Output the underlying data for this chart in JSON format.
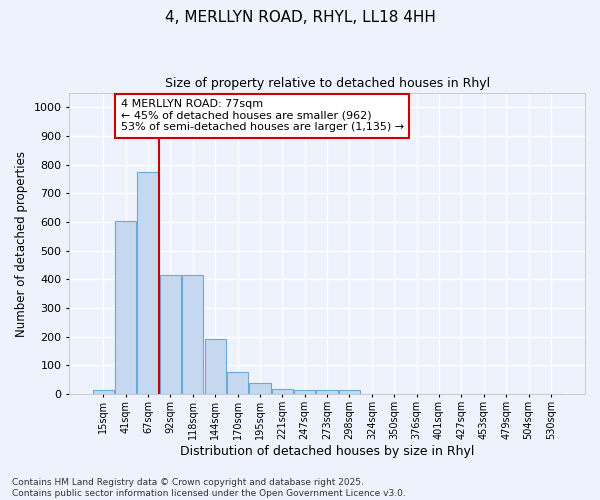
{
  "title_line1": "4, MERLLYN ROAD, RHYL, LL18 4HH",
  "title_line2": "Size of property relative to detached houses in Rhyl",
  "xlabel": "Distribution of detached houses by size in Rhyl",
  "ylabel": "Number of detached properties",
  "categories": [
    "15sqm",
    "41sqm",
    "67sqm",
    "92sqm",
    "118sqm",
    "144sqm",
    "170sqm",
    "195sqm",
    "221sqm",
    "247sqm",
    "273sqm",
    "298sqm",
    "324sqm",
    "350sqm",
    "376sqm",
    "401sqm",
    "427sqm",
    "453sqm",
    "479sqm",
    "504sqm",
    "530sqm"
  ],
  "values": [
    15,
    605,
    775,
    415,
    415,
    193,
    78,
    40,
    18,
    15,
    13,
    13,
    0,
    0,
    0,
    0,
    0,
    0,
    0,
    0,
    0
  ],
  "bar_color": "#c5d8f0",
  "bar_edge_color": "#6aaad4",
  "vline_color": "#cc0000",
  "annotation_text": "4 MERLLYN ROAD: 77sqm\n← 45% of detached houses are smaller (962)\n53% of semi-detached houses are larger (1,135) →",
  "annotation_box_color": "#ffffff",
  "annotation_edge_color": "#cc0000",
  "ylim": [
    0,
    1050
  ],
  "yticks": [
    0,
    100,
    200,
    300,
    400,
    500,
    600,
    700,
    800,
    900,
    1000
  ],
  "background_color": "#eef2fc",
  "grid_color": "#ffffff",
  "footer_line1": "Contains HM Land Registry data © Crown copyright and database right 2025.",
  "footer_line2": "Contains public sector information licensed under the Open Government Licence v3.0."
}
